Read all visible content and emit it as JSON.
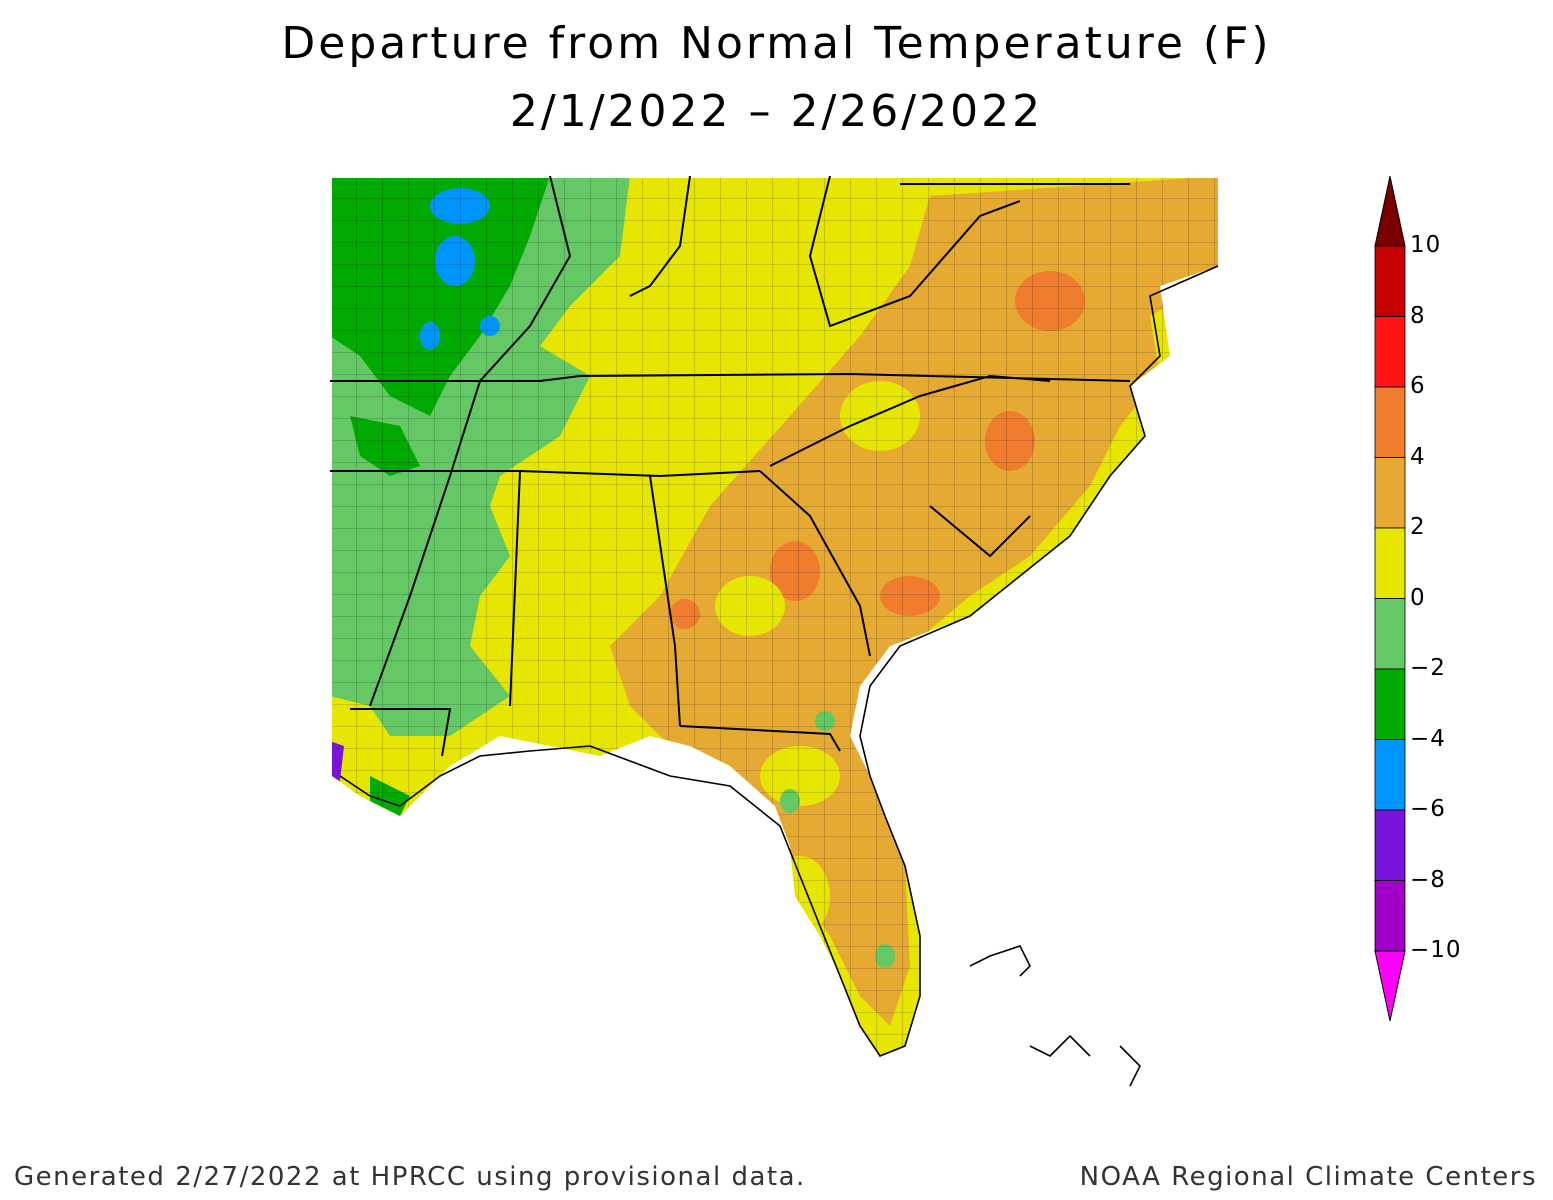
{
  "title": "Departure from Normal Temperature (F)",
  "subtitle": "2/1/2022 – 2/26/2022",
  "legend": {
    "bins": [
      {
        "label": "10",
        "color": "#7a0000"
      },
      {
        "label": "8",
        "color": "#c80000"
      },
      {
        "label": "6",
        "color": "#ff1414"
      },
      {
        "label": "4",
        "color": "#f07d2d"
      },
      {
        "label": "2",
        "color": "#e6aa32"
      },
      {
        "label": "0",
        "color": "#e6e600"
      },
      {
        "label": "−2",
        "color": "#64c864"
      },
      {
        "label": "−4",
        "color": "#00aa00"
      },
      {
        "label": "−6",
        "color": "#0096ff"
      },
      {
        "label": "−8",
        "color": "#7814dc"
      },
      {
        "label": "−10",
        "color": "#a000c8"
      }
    ],
    "min_arrow_color": "#ff00ff",
    "max_arrow_color": "#7a0000"
  },
  "footer": {
    "left": "Generated 2/27/2022 at HPRCC using provisional data.",
    "right": "NOAA Regional Climate Centers"
  }
}
